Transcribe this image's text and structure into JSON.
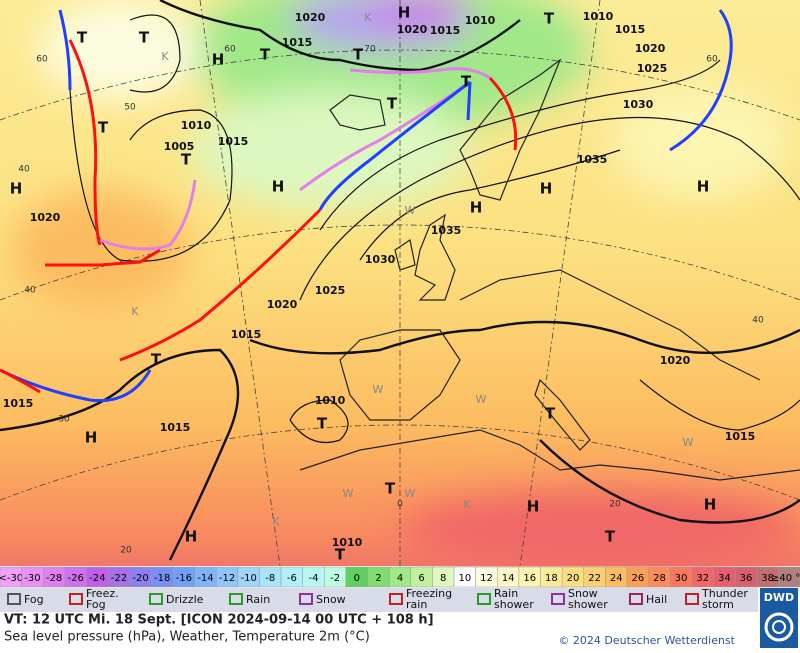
{
  "map": {
    "isobar_labels": [
      "1020",
      "1015",
      "1020",
      "1015",
      "1010",
      "1010",
      "1015",
      "1020",
      "1025",
      "1030",
      "1035",
      "1010",
      "1005",
      "1015",
      "1020",
      "1035",
      "1030",
      "1025",
      "1020",
      "1015",
      "1015",
      "1010",
      "1015",
      "1010",
      "1020",
      "1015"
    ],
    "temperature_grid_labels": [
      "60",
      "50",
      "40",
      "40",
      "30",
      "20",
      "60",
      "60",
      "40",
      "20",
      "0",
      "70"
    ],
    "highs": [
      "H",
      "H",
      "H",
      "H",
      "H",
      "H",
      "H",
      "H",
      "H",
      "H",
      "H"
    ],
    "lows": [
      "T",
      "T",
      "T",
      "T",
      "T",
      "T",
      "T",
      "T",
      "T",
      "T",
      "T",
      "T",
      "T",
      "T",
      "T"
    ],
    "cold_warm_marks": [
      "K",
      "K",
      "K",
      "K",
      "K",
      "W",
      "W",
      "W",
      "W",
      "W",
      "W"
    ]
  },
  "scale": [
    {
      "label": "<-30",
      "color": "#f0a0f8"
    },
    {
      "label": "-30",
      "color": "#e890f4"
    },
    {
      "label": "-28",
      "color": "#de80f0"
    },
    {
      "label": "-26",
      "color": "#d070ec"
    },
    {
      "label": "-24",
      "color": "#c060e8"
    },
    {
      "label": "-22",
      "color": "#a870e8"
    },
    {
      "label": "-20",
      "color": "#8c80f0"
    },
    {
      "label": "-18",
      "color": "#7890f4"
    },
    {
      "label": "-16",
      "color": "#70a0f8"
    },
    {
      "label": "-14",
      "color": "#80b4fa"
    },
    {
      "label": "-12",
      "color": "#90c4fc"
    },
    {
      "label": "-10",
      "color": "#a0d4fc"
    },
    {
      "label": "-8",
      "color": "#a8e4fc"
    },
    {
      "label": "-6",
      "color": "#b0f0f8"
    },
    {
      "label": "-4",
      "color": "#b8f8f0"
    },
    {
      "label": "-2",
      "color": "#c0fce0"
    },
    {
      "label": "0",
      "color": "#60d060"
    },
    {
      "label": "2",
      "color": "#80dc70"
    },
    {
      "label": "4",
      "color": "#a0e888"
    },
    {
      "label": "6",
      "color": "#c0f0a0"
    },
    {
      "label": "8",
      "color": "#dcf8c0"
    },
    {
      "label": "10",
      "color": "#fcfcfc"
    },
    {
      "label": "12",
      "color": "#fcfce0"
    },
    {
      "label": "14",
      "color": "#fcf8c8"
    },
    {
      "label": "16",
      "color": "#fcf4b0"
    },
    {
      "label": "18",
      "color": "#fcec98"
    },
    {
      "label": "20",
      "color": "#fce080"
    },
    {
      "label": "22",
      "color": "#fcd070"
    },
    {
      "label": "24",
      "color": "#fcbc60"
    },
    {
      "label": "26",
      "color": "#fca058"
    },
    {
      "label": "28",
      "color": "#fc8c58"
    },
    {
      "label": "30",
      "color": "#f87860"
    },
    {
      "label": "32",
      "color": "#f06868"
    },
    {
      "label": "34",
      "color": "#e46070"
    },
    {
      "label": "36",
      "color": "#d46070"
    },
    {
      "label": "38",
      "color": "#c07070"
    },
    {
      "label": "≥40 °C",
      "color": "#b08080"
    }
  ],
  "legend": [
    "Fog",
    "Freez. Fog",
    "Drizzle",
    "Rain",
    "Snow",
    "Freezing rain",
    "Rain shower",
    "Snow shower",
    "Hail",
    "Thunder storm"
  ],
  "footer": {
    "valid_time": "VT: 12 UTC Mi.   18 Sept. [ICON 2024-09-14  00 UTC + 108 h]",
    "description": "Sea level pressure (hPa), Weather, Temperature 2m (°C)",
    "copyright": "© 2024 Deutscher Wetterdienst",
    "logo": "DWD"
  }
}
